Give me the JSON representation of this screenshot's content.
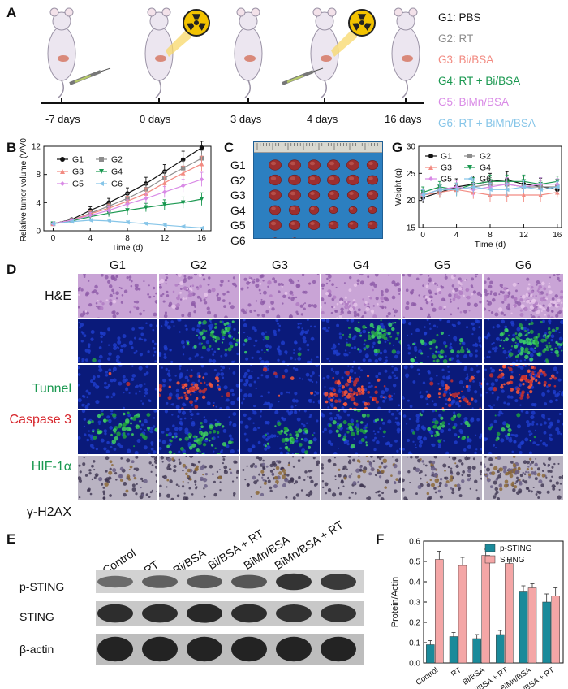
{
  "panels": {
    "a": "A",
    "b": "B",
    "c": "C",
    "d": "D",
    "e": "E",
    "f": "F",
    "g": "G"
  },
  "colors": {
    "g1": "#111111",
    "g2": "#8c8c8c",
    "g3": "#f28b82",
    "g4": "#1a9850",
    "g5": "#d98ae6",
    "g6": "#86c5e8",
    "teal": "#1a8a9a",
    "pink": "#f4a6a6"
  },
  "schedule": {
    "days": [
      "-7 days",
      "0 days",
      "3 days",
      "4 days",
      "16 days"
    ],
    "legend": [
      "G1: PBS",
      "G2: RT",
      "G3: Bi/BSA",
      "G4: RT + Bi/BSA",
      "G5: BiMn/BSA",
      "G6: RT + BiMn/BSA"
    ]
  },
  "photo": {
    "rows": [
      "G1",
      "G2",
      "G3",
      "G4",
      "G5",
      "G6"
    ]
  },
  "ihc": {
    "groups": [
      "G1",
      "G2",
      "G3",
      "G4",
      "G5",
      "G6"
    ],
    "stains": [
      "H&E",
      "Tunnel",
      "Caspase 3",
      "HIF-1α",
      "γ-H2AX"
    ]
  },
  "western": {
    "lanes": [
      "Control",
      "RT",
      "Bi/BSA",
      "Bi/BSA + RT",
      "BiMn/BSA",
      "BiMn/BSA + RT"
    ],
    "proteins": [
      "p-STING",
      "STING",
      "β-actin"
    ]
  },
  "chart_data": [
    {
      "id": "B",
      "type": "line",
      "ylabel": "Relative tumor volume (V/V0)",
      "xlabel": "Time (d)",
      "xlim": [
        -1,
        17
      ],
      "ylim": [
        0,
        12
      ],
      "xticks": [
        "0",
        "4",
        "8",
        "12",
        "16"
      ],
      "yticks": [
        "0",
        "4",
        "8",
        "12"
      ],
      "x": [
        0,
        2,
        4,
        6,
        8,
        10,
        12,
        14,
        16
      ],
      "series": [
        {
          "name": "G1",
          "values": [
            1,
            1.6,
            2.9,
            4.0,
            5.3,
            6.7,
            8.4,
            10.1,
            11.8
          ],
          "err": [
            0.1,
            0.2,
            0.5,
            0.6,
            0.8,
            0.9,
            1.0,
            1.2,
            0.9
          ]
        },
        {
          "name": "G2",
          "values": [
            1,
            1.5,
            2.5,
            3.5,
            4.6,
            5.9,
            7.5,
            8.9,
            10.3
          ],
          "err": [
            0.1,
            0.2,
            0.4,
            0.6,
            0.7,
            0.8,
            0.9,
            1.0,
            1.1
          ]
        },
        {
          "name": "G3",
          "values": [
            1,
            1.5,
            2.4,
            3.2,
            4.2,
            5.3,
            6.8,
            8.2,
            9.5
          ],
          "err": [
            0.1,
            0.2,
            0.4,
            0.6,
            0.7,
            0.8,
            0.9,
            1.0,
            1.1
          ]
        },
        {
          "name": "G4",
          "values": [
            1,
            1.4,
            2.0,
            2.5,
            2.9,
            3.3,
            3.7,
            4.0,
            4.5
          ],
          "err": [
            0.1,
            0.2,
            0.3,
            0.5,
            0.6,
            0.6,
            0.7,
            0.8,
            0.9
          ]
        },
        {
          "name": "G5",
          "values": [
            1,
            1.5,
            2.2,
            2.9,
            3.8,
            4.6,
            5.5,
            6.4,
            7.3
          ],
          "err": [
            0.1,
            0.2,
            0.4,
            0.5,
            0.6,
            0.7,
            0.8,
            0.9,
            1.0
          ]
        },
        {
          "name": "G6",
          "values": [
            1,
            1.3,
            1.5,
            1.4,
            1.2,
            1.0,
            0.8,
            0.6,
            0.4
          ],
          "err": [
            0.1,
            0.1,
            0.2,
            0.2,
            0.2,
            0.2,
            0.2,
            0.1,
            0.1
          ]
        }
      ],
      "legend": [
        "G1",
        "G2",
        "G3",
        "G4",
        "G5",
        "G6"
      ]
    },
    {
      "id": "G",
      "type": "line",
      "ylabel": "Weight (g)",
      "xlabel": "Time (d)",
      "xlim": [
        -0.5,
        16.5
      ],
      "ylim": [
        15,
        30
      ],
      "xticks": [
        "0",
        "4",
        "8",
        "12",
        "16"
      ],
      "yticks": [
        "15",
        "20",
        "25",
        "30"
      ],
      "x": [
        0,
        2,
        4,
        6,
        8,
        10,
        12,
        14,
        16
      ],
      "series": [
        {
          "name": "G1",
          "values": [
            20.5,
            21.5,
            22.5,
            23.0,
            23.5,
            23.8,
            23.0,
            22.6,
            22.0
          ],
          "err": [
            1.0,
            1.0,
            1.5,
            1.5,
            1.5,
            1.5,
            1.5,
            1.5,
            1.0
          ]
        },
        {
          "name": "G2",
          "values": [
            21.0,
            22.0,
            22.0,
            22.5,
            23.0,
            23.0,
            22.5,
            22.5,
            22.5
          ],
          "err": [
            1.0,
            1.0,
            1.2,
            1.2,
            1.2,
            1.2,
            1.2,
            1.2,
            1.0
          ]
        },
        {
          "name": "G3",
          "values": [
            21.0,
            21.5,
            22.0,
            21.5,
            21.0,
            21.0,
            21.0,
            21.0,
            21.5
          ],
          "err": [
            1.0,
            1.0,
            1.2,
            1.2,
            1.2,
            1.2,
            1.2,
            1.2,
            1.0
          ]
        },
        {
          "name": "G4",
          "values": [
            21.5,
            22.5,
            22.0,
            23.0,
            23.5,
            23.5,
            23.5,
            23.0,
            23.5
          ],
          "err": [
            1.0,
            1.0,
            1.2,
            1.2,
            1.2,
            1.2,
            1.2,
            1.2,
            1.0
          ]
        },
        {
          "name": "G5",
          "values": [
            21.0,
            22.0,
            22.5,
            22.0,
            22.5,
            23.0,
            22.5,
            23.0,
            23.0
          ],
          "err": [
            1.0,
            1.0,
            1.2,
            1.2,
            1.2,
            1.2,
            1.2,
            1.2,
            1.0
          ]
        },
        {
          "name": "G6",
          "values": [
            21.0,
            22.0,
            22.0,
            22.5,
            22.0,
            22.0,
            22.5,
            22.0,
            22.5
          ],
          "err": [
            1.0,
            1.0,
            1.2,
            1.2,
            1.2,
            1.2,
            1.2,
            1.2,
            1.0
          ]
        }
      ],
      "legend": [
        "G1",
        "G2",
        "G3",
        "G4",
        "G5",
        "G6"
      ]
    },
    {
      "id": "F",
      "type": "bar",
      "ylabel": "Protein/Actin",
      "xlabel": "",
      "ylim": [
        0,
        0.6
      ],
      "yticks": [
        "0.0",
        "0.1",
        "0.2",
        "0.3",
        "0.4",
        "0.5",
        "0.6"
      ],
      "categories": [
        "Control",
        "RT",
        "Bi/BSA",
        "Bi/BSA + RT",
        "BiMn/BSA",
        "BiMn/BSA + RT"
      ],
      "series": [
        {
          "name": "p-STING",
          "values": [
            0.09,
            0.13,
            0.12,
            0.14,
            0.35,
            0.3
          ],
          "err": [
            0.02,
            0.02,
            0.02,
            0.02,
            0.03,
            0.04
          ]
        },
        {
          "name": "STING",
          "values": [
            0.51,
            0.48,
            0.53,
            0.49,
            0.37,
            0.33
          ],
          "err": [
            0.04,
            0.04,
            0.03,
            0.02,
            0.02,
            0.04
          ]
        }
      ],
      "legend": [
        "p-STING",
        "STING"
      ]
    }
  ]
}
